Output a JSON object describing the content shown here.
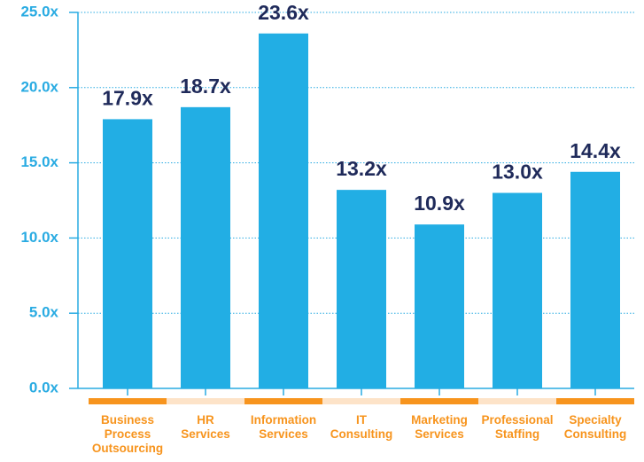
{
  "chart_data": {
    "type": "bar",
    "categories": [
      [
        "Business",
        "Process",
        "Outsourcing"
      ],
      [
        "HR",
        "Services"
      ],
      [
        "Information",
        "Services"
      ],
      [
        "IT",
        "Consulting"
      ],
      [
        "Marketing",
        "Services"
      ],
      [
        "Professional",
        "Staffing"
      ],
      [
        "Specialty",
        "Consulting"
      ]
    ],
    "values": [
      17.9,
      18.7,
      23.6,
      13.2,
      10.9,
      13.0,
      14.4
    ],
    "value_labels": [
      "17.9x",
      "18.7x",
      "23.6x",
      "13.2x",
      "10.9x",
      "13.0x",
      "14.4x"
    ],
    "color": "#22aee4",
    "ylim": [
      0,
      25
    ],
    "yticks": [
      {
        "value": 0,
        "label": "0.0x"
      },
      {
        "value": 5,
        "label": "5.0x"
      },
      {
        "value": 10,
        "label": "10.0x"
      },
      {
        "value": 15,
        "label": "15.0x"
      },
      {
        "value": 20,
        "label": "20.0x"
      },
      {
        "value": 25,
        "label": "25.0x"
      }
    ],
    "grid": true
  }
}
